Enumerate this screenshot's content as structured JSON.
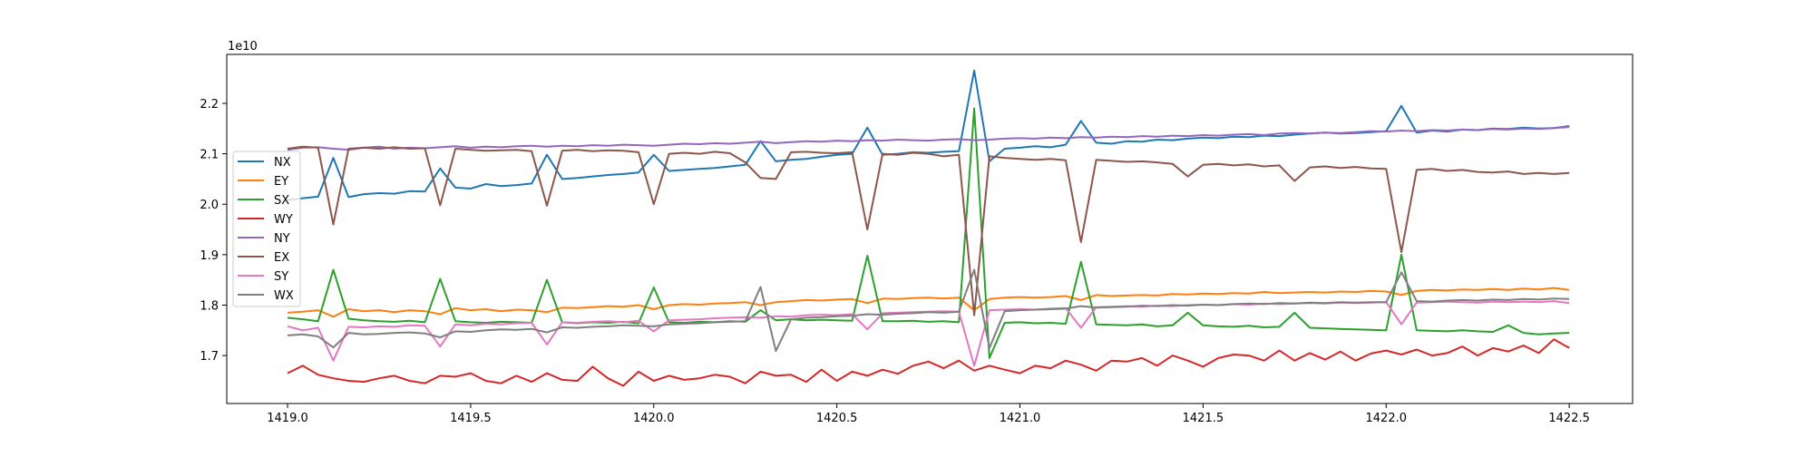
{
  "chart_data": {
    "type": "line",
    "title": "",
    "xlabel": "",
    "ylabel": "",
    "y_offset_label": "1e10",
    "xlim": [
      1418.834,
      1422.673
    ],
    "ylim": [
      1.605,
      2.297
    ],
    "x_ticks": [
      1419.0,
      1419.5,
      1420.0,
      1420.5,
      1421.0,
      1421.5,
      1422.0,
      1422.5
    ],
    "x_tick_labels": [
      "1419.0",
      "1419.5",
      "1420.0",
      "1420.5",
      "1421.0",
      "1421.5",
      "1422.0",
      "1422.5"
    ],
    "y_ticks": [
      1.7,
      1.8,
      1.9,
      2.0,
      2.1,
      2.2
    ],
    "y_tick_labels": [
      "1.7",
      "1.8",
      "1.9",
      "2.0",
      "2.1",
      "2.2"
    ],
    "grid": false,
    "legend_placement": "center-left",
    "x_start": 1419.0,
    "x_step": 0.041667,
    "series": [
      {
        "name": "NX",
        "color": "#1f77b4",
        "values": [
          2.008,
          2.012,
          2.015,
          2.092,
          2.014,
          2.02,
          2.022,
          2.021,
          2.026,
          2.025,
          2.071,
          2.033,
          2.031,
          2.04,
          2.036,
          2.038,
          2.041,
          2.098,
          2.05,
          2.052,
          2.055,
          2.058,
          2.06,
          2.063,
          2.098,
          2.066,
          2.068,
          2.07,
          2.072,
          2.075,
          2.078,
          2.125,
          2.085,
          2.088,
          2.09,
          2.094,
          2.098,
          2.1,
          2.152,
          2.098,
          2.1,
          2.103,
          2.102,
          2.104,
          2.105,
          2.265,
          2.085,
          2.11,
          2.112,
          2.115,
          2.113,
          2.118,
          2.165,
          2.122,
          2.12,
          2.125,
          2.124,
          2.128,
          2.127,
          2.13,
          2.132,
          2.131,
          2.134,
          2.133,
          2.136,
          2.135,
          2.138,
          2.14,
          2.142,
          2.14,
          2.141,
          2.143,
          2.145,
          2.195,
          2.142,
          2.146,
          2.144,
          2.148,
          2.147,
          2.15,
          2.149,
          2.152,
          2.15,
          2.151,
          2.155
        ]
      },
      {
        "name": "EY",
        "color": "#ff7f0e",
        "values": [
          1.785,
          1.787,
          1.79,
          1.777,
          1.792,
          1.788,
          1.79,
          1.786,
          1.79,
          1.788,
          1.782,
          1.794,
          1.79,
          1.792,
          1.788,
          1.791,
          1.79,
          1.786,
          1.795,
          1.794,
          1.796,
          1.798,
          1.797,
          1.8,
          1.792,
          1.8,
          1.802,
          1.801,
          1.803,
          1.804,
          1.806,
          1.8,
          1.806,
          1.808,
          1.81,
          1.809,
          1.811,
          1.812,
          1.804,
          1.813,
          1.812,
          1.814,
          1.815,
          1.813,
          1.815,
          1.79,
          1.812,
          1.815,
          1.816,
          1.815,
          1.816,
          1.818,
          1.81,
          1.82,
          1.818,
          1.819,
          1.82,
          1.819,
          1.822,
          1.821,
          1.823,
          1.822,
          1.824,
          1.823,
          1.826,
          1.824,
          1.825,
          1.826,
          1.825,
          1.827,
          1.826,
          1.828,
          1.827,
          1.82,
          1.828,
          1.83,
          1.829,
          1.831,
          1.83,
          1.832,
          1.83,
          1.833,
          1.831,
          1.834,
          1.83
        ]
      },
      {
        "name": "SX",
        "color": "#2ca02c",
        "values": [
          1.775,
          1.772,
          1.768,
          1.87,
          1.773,
          1.77,
          1.768,
          1.767,
          1.769,
          1.766,
          1.852,
          1.768,
          1.766,
          1.765,
          1.767,
          1.766,
          1.765,
          1.85,
          1.766,
          1.764,
          1.766,
          1.765,
          1.767,
          1.764,
          1.835,
          1.766,
          1.765,
          1.767,
          1.766,
          1.768,
          1.767,
          1.79,
          1.77,
          1.772,
          1.77,
          1.771,
          1.77,
          1.769,
          1.898,
          1.768,
          1.768,
          1.769,
          1.767,
          1.768,
          1.766,
          2.19,
          1.695,
          1.765,
          1.766,
          1.764,
          1.765,
          1.763,
          1.886,
          1.762,
          1.761,
          1.76,
          1.762,
          1.758,
          1.76,
          1.785,
          1.76,
          1.758,
          1.757,
          1.759,
          1.756,
          1.757,
          1.785,
          1.755,
          1.754,
          1.753,
          1.752,
          1.751,
          1.75,
          1.9,
          1.75,
          1.749,
          1.748,
          1.75,
          1.748,
          1.747,
          1.76,
          1.745,
          1.742,
          1.744,
          1.745
        ]
      },
      {
        "name": "WY",
        "color": "#d62728",
        "values": [
          1.665,
          1.68,
          1.662,
          1.655,
          1.65,
          1.648,
          1.655,
          1.66,
          1.65,
          1.645,
          1.66,
          1.658,
          1.665,
          1.65,
          1.645,
          1.66,
          1.648,
          1.665,
          1.652,
          1.65,
          1.678,
          1.655,
          1.64,
          1.668,
          1.65,
          1.66,
          1.652,
          1.655,
          1.662,
          1.658,
          1.645,
          1.668,
          1.66,
          1.662,
          1.648,
          1.672,
          1.65,
          1.668,
          1.66,
          1.672,
          1.664,
          1.68,
          1.688,
          1.675,
          1.69,
          1.67,
          1.68,
          1.672,
          1.665,
          1.68,
          1.675,
          1.69,
          1.682,
          1.67,
          1.69,
          1.688,
          1.695,
          1.68,
          1.7,
          1.69,
          1.678,
          1.695,
          1.702,
          1.7,
          1.69,
          1.71,
          1.69,
          1.705,
          1.692,
          1.708,
          1.69,
          1.704,
          1.71,
          1.702,
          1.712,
          1.7,
          1.705,
          1.718,
          1.7,
          1.715,
          1.708,
          1.72,
          1.705,
          1.732,
          1.715
        ]
      },
      {
        "name": "NY",
        "color": "#9467bd",
        "values": [
          2.108,
          2.112,
          2.113,
          2.11,
          2.108,
          2.112,
          2.114,
          2.11,
          2.112,
          2.111,
          2.113,
          2.115,
          2.112,
          2.114,
          2.113,
          2.115,
          2.116,
          2.114,
          2.116,
          2.115,
          2.117,
          2.116,
          2.118,
          2.117,
          2.116,
          2.118,
          2.12,
          2.119,
          2.121,
          2.12,
          2.122,
          2.124,
          2.121,
          2.123,
          2.125,
          2.124,
          2.126,
          2.125,
          2.127,
          2.126,
          2.128,
          2.127,
          2.126,
          2.128,
          2.129,
          2.127,
          2.128,
          2.13,
          2.131,
          2.13,
          2.132,
          2.131,
          2.133,
          2.132,
          2.134,
          2.133,
          2.135,
          2.134,
          2.136,
          2.135,
          2.137,
          2.136,
          2.138,
          2.139,
          2.137,
          2.14,
          2.141,
          2.14,
          2.142,
          2.141,
          2.143,
          2.145,
          2.144,
          2.146,
          2.145,
          2.147,
          2.146,
          2.148,
          2.147,
          2.149,
          2.148,
          2.15,
          2.149,
          2.151,
          2.153
        ]
      },
      {
        "name": "EX",
        "color": "#8c564b",
        "values": [
          2.11,
          2.114,
          2.112,
          1.96,
          2.11,
          2.112,
          2.11,
          2.113,
          2.11,
          2.111,
          1.998,
          2.11,
          2.108,
          2.106,
          2.107,
          2.108,
          2.105,
          1.997,
          2.106,
          2.108,
          2.105,
          2.107,
          2.106,
          2.103,
          2.0,
          2.1,
          2.102,
          2.1,
          2.104,
          2.101,
          2.083,
          2.052,
          2.05,
          2.103,
          2.104,
          2.102,
          2.101,
          2.103,
          1.95,
          2.1,
          2.098,
          2.102,
          2.1,
          2.095,
          2.098,
          1.78,
          2.095,
          2.092,
          2.09,
          2.088,
          2.09,
          2.087,
          1.925,
          2.088,
          2.086,
          2.084,
          2.085,
          2.083,
          2.08,
          2.055,
          2.078,
          2.08,
          2.077,
          2.079,
          2.075,
          2.077,
          2.046,
          2.073,
          2.075,
          2.072,
          2.074,
          2.071,
          2.07,
          1.905,
          2.068,
          2.07,
          2.066,
          2.068,
          2.064,
          2.063,
          2.065,
          2.06,
          2.062,
          2.06,
          2.062
        ]
      },
      {
        "name": "SY",
        "color": "#e377c2",
        "values": [
          1.758,
          1.75,
          1.755,
          1.69,
          1.757,
          1.756,
          1.758,
          1.757,
          1.76,
          1.759,
          1.718,
          1.762,
          1.76,
          1.763,
          1.762,
          1.764,
          1.765,
          1.722,
          1.766,
          1.765,
          1.767,
          1.768,
          1.766,
          1.769,
          1.748,
          1.77,
          1.771,
          1.772,
          1.774,
          1.775,
          1.776,
          1.775,
          1.778,
          1.777,
          1.78,
          1.781,
          1.78,
          1.782,
          1.752,
          1.784,
          1.785,
          1.786,
          1.787,
          1.788,
          1.787,
          1.68,
          1.79,
          1.791,
          1.792,
          1.791,
          1.793,
          1.794,
          1.755,
          1.796,
          1.797,
          1.798,
          1.797,
          1.799,
          1.798,
          1.8,
          1.801,
          1.8,
          1.802,
          1.801,
          1.803,
          1.802,
          1.803,
          1.804,
          1.803,
          1.805,
          1.804,
          1.805,
          1.806,
          1.762,
          1.805,
          1.806,
          1.807,
          1.806,
          1.805,
          1.807,
          1.806,
          1.807,
          1.806,
          1.808,
          1.804
        ]
      },
      {
        "name": "WX",
        "color": "#7f7f7f",
        "values": [
          1.74,
          1.742,
          1.738,
          1.716,
          1.745,
          1.742,
          1.743,
          1.745,
          1.746,
          1.744,
          1.736,
          1.748,
          1.747,
          1.75,
          1.752,
          1.751,
          1.753,
          1.746,
          1.756,
          1.755,
          1.757,
          1.758,
          1.76,
          1.759,
          1.758,
          1.762,
          1.763,
          1.764,
          1.766,
          1.767,
          1.768,
          1.836,
          1.709,
          1.772,
          1.775,
          1.776,
          1.778,
          1.779,
          1.782,
          1.781,
          1.783,
          1.784,
          1.786,
          1.785,
          1.787,
          1.87,
          1.715,
          1.788,
          1.79,
          1.791,
          1.792,
          1.793,
          1.798,
          1.795,
          1.796,
          1.797,
          1.799,
          1.798,
          1.8,
          1.799,
          1.801,
          1.8,
          1.802,
          1.803,
          1.802,
          1.804,
          1.803,
          1.805,
          1.804,
          1.806,
          1.805,
          1.806,
          1.806,
          1.865,
          1.808,
          1.807,
          1.809,
          1.81,
          1.809,
          1.811,
          1.81,
          1.812,
          1.811,
          1.813,
          1.812
        ]
      }
    ]
  }
}
